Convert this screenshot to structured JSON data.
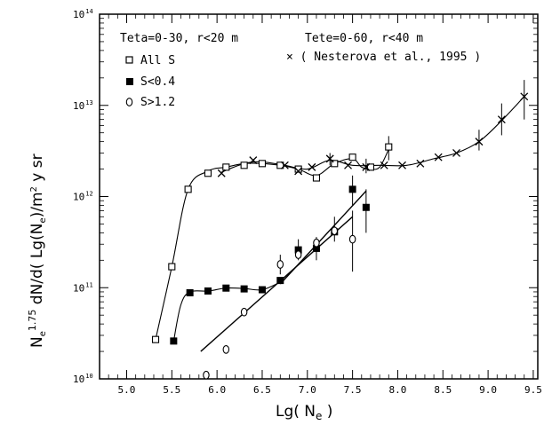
{
  "chart_data": {
    "type": "scatter",
    "title": "",
    "xlabel": {
      "base": "Lg( N",
      "sub": "e",
      "close": " )"
    },
    "ylabel": {
      "pre": "N",
      "sub": "e",
      "sup": "1.75",
      "mid": " dN/d( Lg(N",
      "sub2": "e",
      "post": ")/m",
      "sup2": "2",
      "tail": " y sr"
    },
    "xlim": [
      4.7,
      9.55
    ],
    "ylim_log10": [
      10,
      14
    ],
    "yscale": "log",
    "x_ticks": [
      "5.0",
      "5.5",
      "6.0",
      "6.5",
      "7.0",
      "7.5",
      "8.0",
      "8.5",
      "9.0",
      "9.5"
    ],
    "y_ticks": [
      {
        "base": "10",
        "exp": "10"
      },
      {
        "base": "10",
        "exp": "11"
      },
      {
        "base": "10",
        "exp": "12"
      },
      {
        "base": "10",
        "exp": "13"
      },
      {
        "base": "10",
        "exp": "14"
      }
    ],
    "annotations": [
      "Teta=0-30, r<20 m",
      "Tete=0-60, r<40 m",
      "× ( Nesterova et al., 1995 )"
    ],
    "legend_position": "top-left",
    "series": [
      {
        "name": "All S",
        "marker": "open-square",
        "points": [
          {
            "x": 5.32,
            "y": 27000000000.0
          },
          {
            "x": 5.5,
            "y": 170000000000.0
          },
          {
            "x": 5.68,
            "y": 1200000000000.0
          },
          {
            "x": 5.9,
            "y": 1800000000000.0
          },
          {
            "x": 6.1,
            "y": 2100000000000.0
          },
          {
            "x": 6.3,
            "y": 2200000000000.0
          },
          {
            "x": 6.5,
            "y": 2300000000000.0
          },
          {
            "x": 6.7,
            "y": 2200000000000.0
          },
          {
            "x": 6.9,
            "y": 2000000000000.0
          },
          {
            "x": 7.1,
            "y": 1600000000000.0
          },
          {
            "x": 7.3,
            "y": 2300000000000.0
          },
          {
            "x": 7.5,
            "y": 2700000000000.0
          },
          {
            "x": 7.7,
            "y": 2100000000000.0
          },
          {
            "x": 7.9,
            "y": 3500000000000.0
          }
        ],
        "curve": [
          [
            5.32,
            27000000000.0
          ],
          [
            5.5,
            170000000000.0
          ],
          [
            5.68,
            1200000000000.0
          ],
          [
            5.9,
            1900000000000.0
          ],
          [
            6.1,
            2100000000000.0
          ],
          [
            6.3,
            2300000000000.0
          ],
          [
            6.5,
            2300000000000.0
          ],
          [
            6.7,
            2200000000000.0
          ],
          [
            6.9,
            2000000000000.0
          ],
          [
            7.1,
            1700000000000.0
          ],
          [
            7.3,
            2300000000000.0
          ],
          [
            7.5,
            2600000000000.0
          ],
          [
            7.6,
            2100000000000.0
          ],
          [
            7.7,
            2000000000000.0
          ],
          [
            7.8,
            2100000000000.0
          ],
          [
            7.9,
            3300000000000.0
          ]
        ]
      },
      {
        "name": "S<0.4",
        "marker": "filled-square",
        "points": [
          {
            "x": 5.52,
            "y": 26000000000.0
          },
          {
            "x": 5.7,
            "y": 88000000000.0
          },
          {
            "x": 5.9,
            "y": 92000000000.0
          },
          {
            "x": 6.1,
            "y": 99000000000.0
          },
          {
            "x": 6.3,
            "y": 97000000000.0
          },
          {
            "x": 6.5,
            "y": 95000000000.0
          },
          {
            "x": 6.7,
            "y": 120000000000.0
          },
          {
            "x": 6.9,
            "y": 260000000000.0
          },
          {
            "x": 7.1,
            "y": 270000000000.0
          },
          {
            "x": 7.3,
            "y": 410000000000.0
          },
          {
            "x": 7.5,
            "y": 1200000000000.0
          },
          {
            "x": 7.65,
            "y": 760000000000.0
          }
        ],
        "curve": [
          [
            5.52,
            26000000000.0
          ],
          [
            5.6,
            65000000000.0
          ],
          [
            5.7,
            90000000000.0
          ],
          [
            5.9,
            92000000000.0
          ],
          [
            6.1,
            99000000000.0
          ],
          [
            6.3,
            98000000000.0
          ],
          [
            6.5,
            95000000000.0
          ],
          [
            6.7,
            115000000000.0
          ]
        ],
        "fit_line": [
          [
            6.7,
            110000000000.0
          ],
          [
            7.65,
            1150000000000.0
          ]
        ]
      },
      {
        "name": "S>1.2",
        "marker": "open-circle",
        "points": [
          {
            "x": 5.88,
            "y": 11000000000.0
          },
          {
            "x": 6.1,
            "y": 21000000000.0
          },
          {
            "x": 6.3,
            "y": 54000000000.0
          },
          {
            "x": 6.7,
            "y": 180000000000.0
          },
          {
            "x": 6.9,
            "y": 230000000000.0
          },
          {
            "x": 7.1,
            "y": 310000000000.0
          },
          {
            "x": 7.3,
            "y": 420000000000.0
          },
          {
            "x": 7.5,
            "y": 340000000000.0
          }
        ],
        "fit_line": [
          [
            5.82,
            20000000000.0
          ],
          [
            7.5,
            600000000000.0
          ]
        ]
      },
      {
        "name": "Nesterova et al., 1995",
        "marker": "cross",
        "points": [
          {
            "x": 6.05,
            "y": 1800000000000.0
          },
          {
            "x": 6.4,
            "y": 2500000000000.0
          },
          {
            "x": 6.75,
            "y": 2200000000000.0
          },
          {
            "x": 6.9,
            "y": 1900000000000.0
          },
          {
            "x": 7.05,
            "y": 2100000000000.0
          },
          {
            "x": 7.25,
            "y": 2600000000000.0
          },
          {
            "x": 7.45,
            "y": 2200000000000.0
          },
          {
            "x": 7.65,
            "y": 2100000000000.0
          },
          {
            "x": 7.85,
            "y": 2200000000000.0
          },
          {
            "x": 8.05,
            "y": 2200000000000.0
          },
          {
            "x": 8.25,
            "y": 2300000000000.0
          },
          {
            "x": 8.45,
            "y": 2700000000000.0
          },
          {
            "x": 8.65,
            "y": 3000000000000.0
          },
          {
            "x": 8.9,
            "y": 4000000000000.0
          },
          {
            "x": 9.15,
            "y": 7000000000000.0
          },
          {
            "x": 9.4,
            "y": 12500000000000.0
          }
        ],
        "curve": [
          [
            6.05,
            1850000000000.0
          ],
          [
            6.3,
            2300000000000.0
          ],
          [
            6.5,
            2400000000000.0
          ],
          [
            6.75,
            2200000000000.0
          ],
          [
            7.0,
            2000000000000.0
          ],
          [
            7.25,
            2500000000000.0
          ],
          [
            7.5,
            2200000000000.0
          ],
          [
            7.8,
            2200000000000.0
          ],
          [
            8.1,
            2200000000000.0
          ],
          [
            8.4,
            2600000000000.0
          ],
          [
            8.65,
            3000000000000.0
          ],
          [
            8.9,
            4000000000000.0
          ],
          [
            9.15,
            6800000000000.0
          ],
          [
            9.4,
            12500000000000.0
          ]
        ]
      }
    ]
  }
}
